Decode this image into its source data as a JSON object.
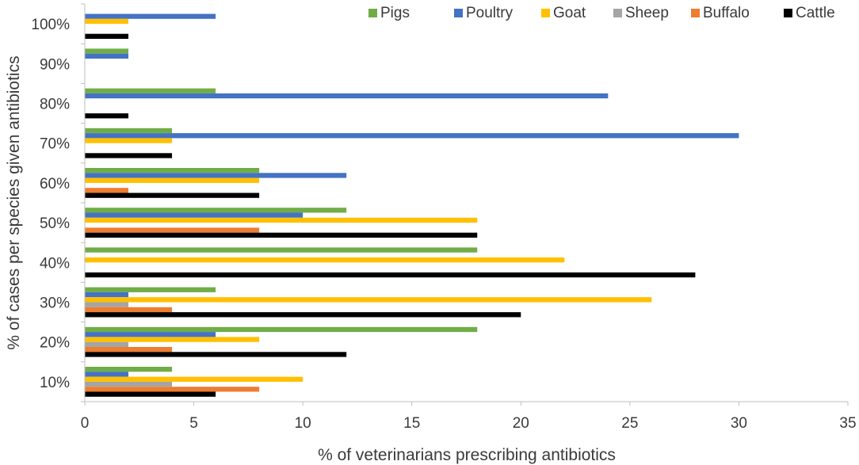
{
  "chart_data": {
    "type": "bar",
    "orientation": "horizontal",
    "title": "",
    "xlabel": "% of veterinarians prescribing antibiotics",
    "ylabel": "% of cases per species given antibiotics",
    "xlim": [
      0,
      35
    ],
    "xticks": [
      0,
      5,
      10,
      15,
      20,
      25,
      30,
      35
    ],
    "categories": [
      "10%",
      "20%",
      "30%",
      "40%",
      "50%",
      "60%",
      "70%",
      "80%",
      "90%",
      "100%"
    ],
    "legend_position": "top-right",
    "grid": false,
    "series": [
      {
        "name": "Pigs",
        "color": "#70ad47",
        "values": [
          4,
          18,
          6,
          18,
          12,
          8,
          4,
          6,
          2,
          0
        ]
      },
      {
        "name": "Poultry",
        "color": "#4472c4",
        "values": [
          2,
          6,
          2,
          0,
          10,
          12,
          30,
          24,
          2,
          6
        ]
      },
      {
        "name": "Goat",
        "color": "#ffc000",
        "values": [
          10,
          8,
          26,
          22,
          18,
          8,
          4,
          0,
          0,
          2
        ]
      },
      {
        "name": "Sheep",
        "color": "#a5a5a5",
        "values": [
          4,
          2,
          2,
          0,
          0,
          0,
          0,
          0,
          0,
          0
        ]
      },
      {
        "name": "Buffalo",
        "color": "#ed7d31",
        "values": [
          8,
          4,
          4,
          0,
          8,
          2,
          0,
          0,
          0,
          0
        ]
      },
      {
        "name": "Cattle",
        "color": "#000000",
        "values": [
          6,
          12,
          20,
          28,
          18,
          8,
          4,
          2,
          0,
          2
        ]
      }
    ]
  }
}
